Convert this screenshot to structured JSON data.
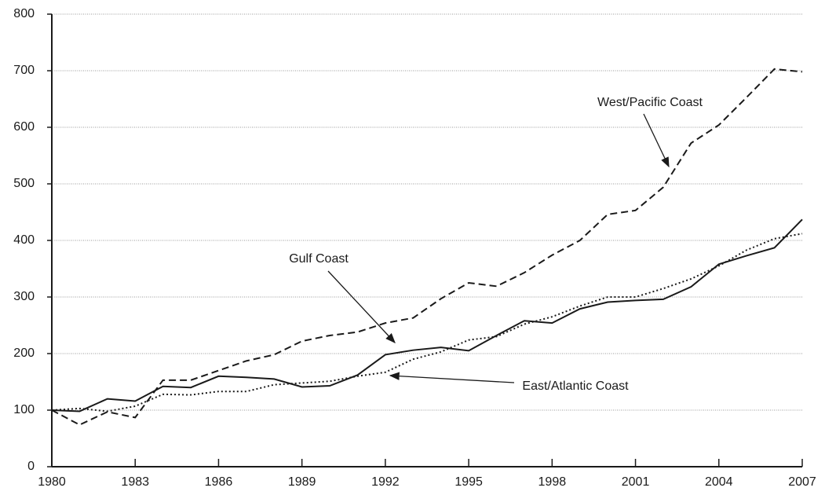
{
  "chart_data": {
    "type": "line",
    "x": [
      1980,
      1981,
      1982,
      1983,
      1984,
      1985,
      1986,
      1987,
      1988,
      1989,
      1990,
      1991,
      1992,
      1993,
      1994,
      1995,
      1996,
      1997,
      1998,
      1999,
      2000,
      2001,
      2002,
      2003,
      2004,
      2005,
      2006,
      2007
    ],
    "series": [
      {
        "name": "West/Pacific Coast",
        "color": "#1a1a1a",
        "style": "dashed",
        "values": [
          100,
          74,
          97,
          87,
          153,
          153,
          170,
          187,
          198,
          222,
          232,
          238,
          254,
          263,
          297,
          325,
          319,
          343,
          374,
          400,
          446,
          453,
          494,
          572,
          604,
          653,
          703,
          698
        ]
      },
      {
        "name": "Gulf Coast",
        "color": "#1a1a1a",
        "style": "solid",
        "values": [
          100,
          98,
          120,
          116,
          142,
          140,
          160,
          158,
          155,
          141,
          143,
          162,
          198,
          206,
          211,
          205,
          232,
          258,
          254,
          279,
          291,
          294,
          296,
          318,
          358,
          373,
          387,
          437
        ]
      },
      {
        "name": "East/Atlantic Coast",
        "color": "#1a1a1a",
        "style": "dotted",
        "values": [
          100,
          103,
          98,
          107,
          128,
          127,
          133,
          133,
          145,
          148,
          151,
          160,
          167,
          190,
          203,
          224,
          230,
          252,
          265,
          284,
          300,
          300,
          315,
          332,
          355,
          383,
          403,
          412
        ]
      }
    ],
    "xlim": [
      1980,
      2007
    ],
    "xticks": [
      1980,
      1983,
      1986,
      1989,
      1992,
      1995,
      1998,
      2001,
      2004,
      2007
    ],
    "ylim": [
      0,
      800
    ],
    "yticks": [
      0,
      100,
      200,
      300,
      400,
      500,
      600,
      700,
      800
    ],
    "grid": true
  }
}
